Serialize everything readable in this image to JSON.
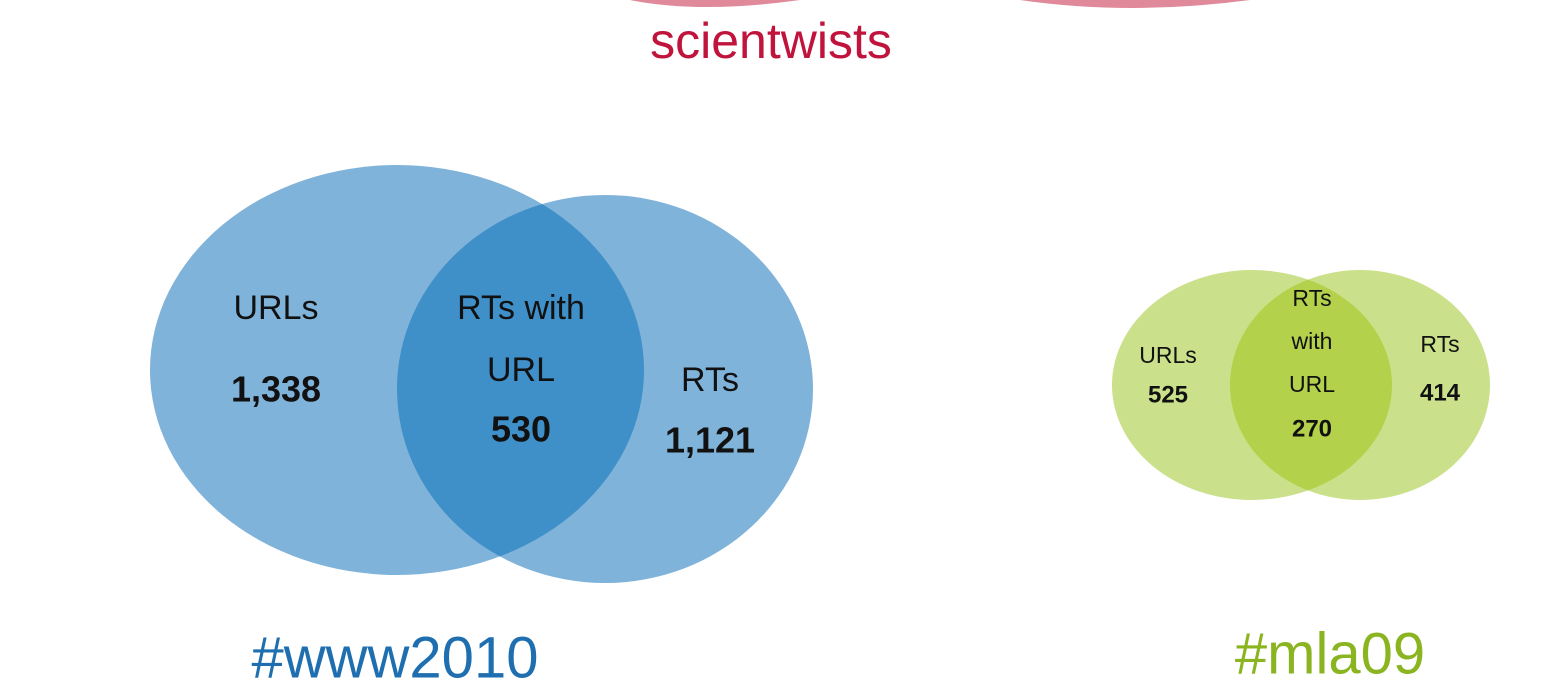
{
  "title": "scientwists",
  "venns": [
    {
      "label": "#www2010",
      "left": {
        "label": "URLs",
        "count": "1,338"
      },
      "overlap": {
        "label": [
          "RTs with",
          "URL"
        ],
        "count": "530"
      },
      "right": {
        "label": "RTs",
        "count": "1,121"
      }
    },
    {
      "label": "#mla09",
      "left": {
        "label": "URLs",
        "count": "525"
      },
      "overlap": {
        "label": [
          "RTs",
          "with",
          "URL"
        ],
        "count": "270"
      },
      "right": {
        "label": "RTs",
        "count": "414"
      }
    }
  ]
}
